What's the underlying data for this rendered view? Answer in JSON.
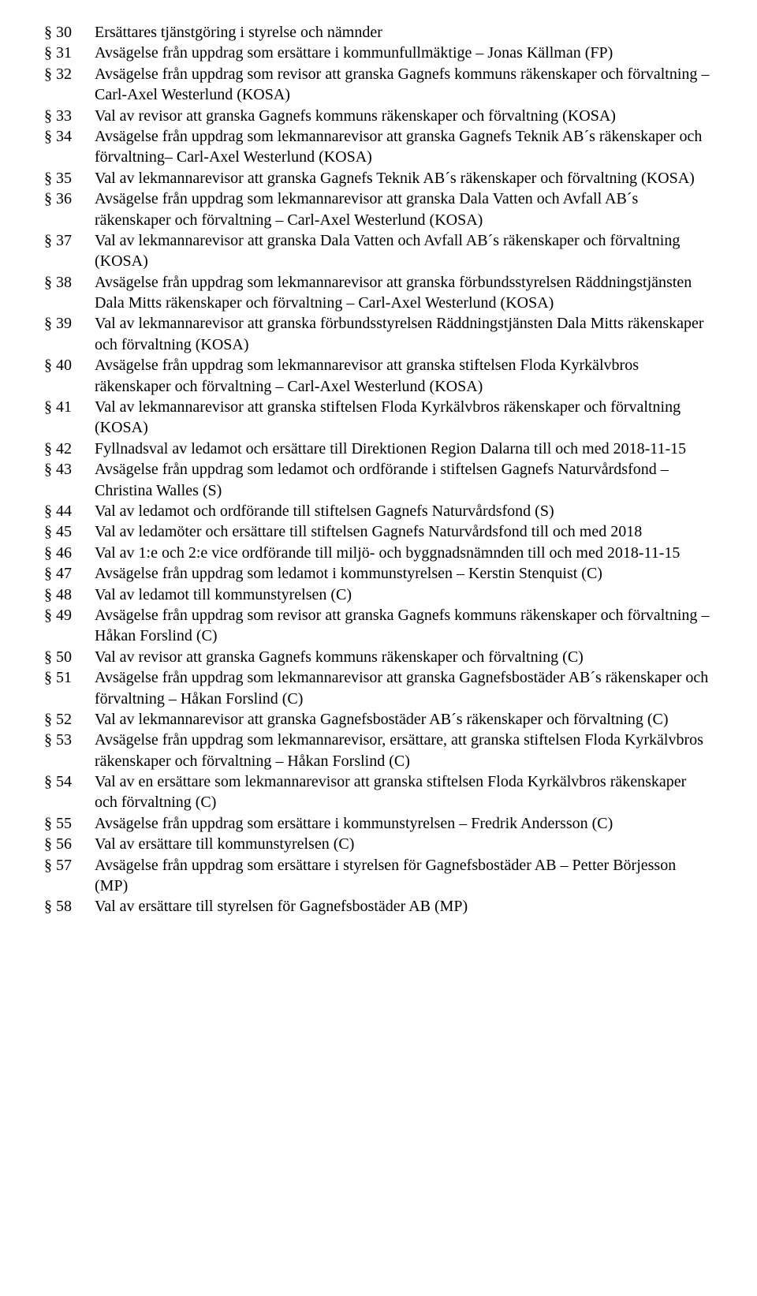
{
  "items": [
    {
      "section": "§ 30",
      "text": "Ersättares tjänstgöring i styrelse och nämnder"
    },
    {
      "section": "§ 31",
      "text": "Avsägelse från uppdrag som ersättare i kommunfullmäktige – Jonas Källman (FP)"
    },
    {
      "section": "§ 32",
      "text": "Avsägelse från uppdrag som revisor att granska Gagnefs kommuns räkenskaper och förvaltning – Carl-Axel Westerlund (KOSA)"
    },
    {
      "section": "§ 33",
      "text": "Val av revisor att granska Gagnefs kommuns räkenskaper och förvaltning (KOSA)"
    },
    {
      "section": "§ 34",
      "text": "Avsägelse från uppdrag som lekmannarevisor att granska Gagnefs Teknik AB´s räkenskaper och förvaltning– Carl-Axel Westerlund (KOSA)"
    },
    {
      "section": "§ 35",
      "text": "Val av lekmannarevisor att granska Gagnefs Teknik AB´s räkenskaper och förvaltning (KOSA)"
    },
    {
      "section": "§ 36",
      "text": "Avsägelse från uppdrag som lekmannarevisor att granska Dala Vatten och Avfall AB´s räkenskaper och förvaltning – Carl-Axel Westerlund (KOSA)"
    },
    {
      "section": "§ 37",
      "text": "Val av lekmannarevisor att granska Dala Vatten och Avfall AB´s räkenskaper och förvaltning (KOSA)"
    },
    {
      "section": "§ 38",
      "text": "Avsägelse från uppdrag som lekmannarevisor att granska förbundsstyrelsen Räddningstjänsten Dala Mitts räkenskaper och förvaltning – Carl-Axel Westerlund (KOSA)"
    },
    {
      "section": "§ 39",
      "text": "Val av lekmannarevisor att granska förbundsstyrelsen Räddningstjänsten Dala Mitts räkenskaper och förvaltning (KOSA)"
    },
    {
      "section": "§ 40",
      "text": "Avsägelse från uppdrag som lekmannarevisor att granska stiftelsen Floda Kyrkälvbros räkenskaper och förvaltning – Carl-Axel Westerlund (KOSA)"
    },
    {
      "section": "§ 41",
      "text": "Val av lekmannarevisor att granska stiftelsen Floda Kyrkälvbros räkenskaper och förvaltning (KOSA)"
    },
    {
      "section": "§ 42",
      "text": "Fyllnadsval av ledamot och ersättare till Direktionen Region Dalarna till och med 2018-11-15"
    },
    {
      "section": "§ 43",
      "text": "Avsägelse från uppdrag som ledamot och ordförande i stiftelsen Gagnefs Naturvårdsfond – Christina Walles (S)"
    },
    {
      "section": "§ 44",
      "text": "Val av ledamot och ordförande till stiftelsen Gagnefs Naturvårdsfond (S)"
    },
    {
      "section": "§ 45",
      "text": "Val av ledamöter och ersättare till stiftelsen Gagnefs Naturvårdsfond till och med 2018"
    },
    {
      "section": "§ 46",
      "text": "Val av 1:e och 2:e vice ordförande till miljö- och byggnadsnämnden till och med 2018-11-15"
    },
    {
      "section": "§ 47",
      "text": "Avsägelse från uppdrag som ledamot i kommunstyrelsen  – Kerstin Stenquist (C)"
    },
    {
      "section": "§ 48",
      "text": "Val av ledamot till kommunstyrelsen (C)"
    },
    {
      "section": "§ 49",
      "text": "Avsägelse från uppdrag som revisor att granska Gagnefs kommuns räkenskaper och förvaltning – Håkan Forslind (C)"
    },
    {
      "section": "§ 50",
      "text": "Val av revisor att granska Gagnefs kommuns räkenskaper och förvaltning (C)"
    },
    {
      "section": "§ 51",
      "text": "Avsägelse från uppdrag som lekmannarevisor att granska Gagnefsbostäder AB´s räkenskaper och förvaltning – Håkan Forslind (C)"
    },
    {
      "section": "§ 52",
      "text": "Val av lekmannarevisor att granska Gagnefsbostäder AB´s räkenskaper och förvaltning (C)"
    },
    {
      "section": "§ 53",
      "text": "Avsägelse från uppdrag som lekmannarevisor, ersättare, att granska stiftelsen Floda Kyrkälvbros räkenskaper och förvaltning – Håkan Forslind (C)"
    },
    {
      "section": "§ 54",
      "text": "Val av en ersättare som lekmannarevisor att granska stiftelsen Floda Kyrkälvbros räkenskaper och förvaltning (C)"
    },
    {
      "section": "§ 55",
      "text": "Avsägelse från uppdrag som ersättare i kommunstyrelsen – Fredrik Andersson (C)"
    },
    {
      "section": "§ 56",
      "text": "Val av ersättare till kommunstyrelsen (C)"
    },
    {
      "section": "§ 57",
      "text": "Avsägelse från uppdrag som ersättare i styrelsen för Gagnefsbostäder AB – Petter Börjesson (MP)"
    },
    {
      "section": "§ 58",
      "text": "Val av ersättare till styrelsen för Gagnefsbostäder AB (MP)"
    }
  ]
}
